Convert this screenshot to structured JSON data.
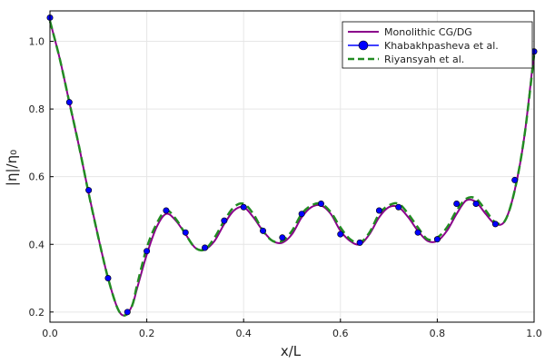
{
  "chart_data": {
    "type": "line",
    "title": "",
    "xlabel": "x/L",
    "ylabel": "|η|/η₀",
    "xlim": [
      0,
      1
    ],
    "ylim": [
      0.17,
      1.09
    ],
    "xticks": [
      0.0,
      0.2,
      0.4,
      0.6,
      0.8,
      1.0
    ],
    "xtick_labels": [
      "0.0",
      "0.2",
      "0.4",
      "0.6",
      "0.8",
      "1.0"
    ],
    "yticks": [
      0.2,
      0.4,
      0.6,
      0.8,
      1.0
    ],
    "ytick_labels": [
      "0.2",
      "0.4",
      "0.6",
      "0.8",
      "1.0"
    ],
    "grid": true,
    "legend_position": "top-right",
    "series": [
      {
        "name": "Monolithic CG/DG",
        "style": "solid-line",
        "color": "#8b008b",
        "x": [
          0,
          0.02,
          0.04,
          0.06,
          0.08,
          0.1,
          0.12,
          0.14,
          0.155,
          0.17,
          0.18,
          0.2,
          0.22,
          0.24,
          0.26,
          0.28,
          0.3,
          0.32,
          0.34,
          0.36,
          0.38,
          0.4,
          0.42,
          0.44,
          0.46,
          0.48,
          0.5,
          0.52,
          0.54,
          0.56,
          0.58,
          0.6,
          0.62,
          0.64,
          0.66,
          0.68,
          0.7,
          0.72,
          0.74,
          0.76,
          0.78,
          0.8,
          0.82,
          0.84,
          0.86,
          0.88,
          0.9,
          0.92,
          0.94,
          0.96,
          0.98,
          1.0
        ],
        "y": [
          1.06,
          0.95,
          0.82,
          0.69,
          0.55,
          0.42,
          0.3,
          0.21,
          0.19,
          0.22,
          0.27,
          0.37,
          0.45,
          0.49,
          0.47,
          0.43,
          0.39,
          0.385,
          0.41,
          0.46,
          0.5,
          0.51,
          0.48,
          0.44,
          0.41,
          0.405,
          0.43,
          0.48,
          0.51,
          0.515,
          0.49,
          0.44,
          0.41,
          0.4,
          0.43,
          0.48,
          0.51,
          0.51,
          0.48,
          0.44,
          0.41,
          0.41,
          0.44,
          0.49,
          0.53,
          0.525,
          0.49,
          0.46,
          0.47,
          0.56,
          0.72,
          0.97
        ]
      },
      {
        "name": "Khabakhpasheva et al.",
        "style": "line-with-markers",
        "color": "#0000ff",
        "x": [
          0,
          0.04,
          0.08,
          0.12,
          0.16,
          0.2,
          0.24,
          0.28,
          0.32,
          0.36,
          0.4,
          0.44,
          0.48,
          0.52,
          0.56,
          0.6,
          0.64,
          0.68,
          0.72,
          0.76,
          0.8,
          0.84,
          0.88,
          0.92,
          0.96,
          1.0
        ],
        "y": [
          1.07,
          0.82,
          0.56,
          0.3,
          0.2,
          0.38,
          0.5,
          0.435,
          0.39,
          0.47,
          0.51,
          0.44,
          0.42,
          0.49,
          0.52,
          0.43,
          0.405,
          0.5,
          0.51,
          0.435,
          0.415,
          0.52,
          0.52,
          0.46,
          0.59,
          0.97
        ]
      },
      {
        "name": "Riyansyah et al.",
        "style": "dashed-line",
        "color": "#228b22",
        "x": [
          0,
          0.02,
          0.04,
          0.06,
          0.08,
          0.1,
          0.12,
          0.14,
          0.155,
          0.17,
          0.18,
          0.2,
          0.22,
          0.24,
          0.26,
          0.28,
          0.3,
          0.32,
          0.34,
          0.36,
          0.38,
          0.4,
          0.42,
          0.44,
          0.46,
          0.48,
          0.5,
          0.52,
          0.54,
          0.56,
          0.58,
          0.6,
          0.62,
          0.64,
          0.66,
          0.68,
          0.7,
          0.72,
          0.74,
          0.76,
          0.78,
          0.8,
          0.82,
          0.84,
          0.86,
          0.88,
          0.9,
          0.92,
          0.94,
          0.96,
          0.98,
          1.0
        ],
        "y": [
          1.06,
          0.95,
          0.82,
          0.69,
          0.55,
          0.42,
          0.3,
          0.21,
          0.19,
          0.22,
          0.28,
          0.39,
          0.46,
          0.5,
          0.475,
          0.43,
          0.39,
          0.385,
          0.42,
          0.47,
          0.51,
          0.52,
          0.49,
          0.44,
          0.41,
          0.41,
          0.44,
          0.49,
          0.515,
          0.52,
          0.495,
          0.45,
          0.415,
          0.405,
          0.435,
          0.49,
          0.515,
          0.52,
          0.49,
          0.45,
          0.415,
          0.42,
          0.45,
          0.5,
          0.535,
          0.535,
          0.5,
          0.465,
          0.47,
          0.56,
          0.72,
          0.96
        ]
      }
    ]
  }
}
